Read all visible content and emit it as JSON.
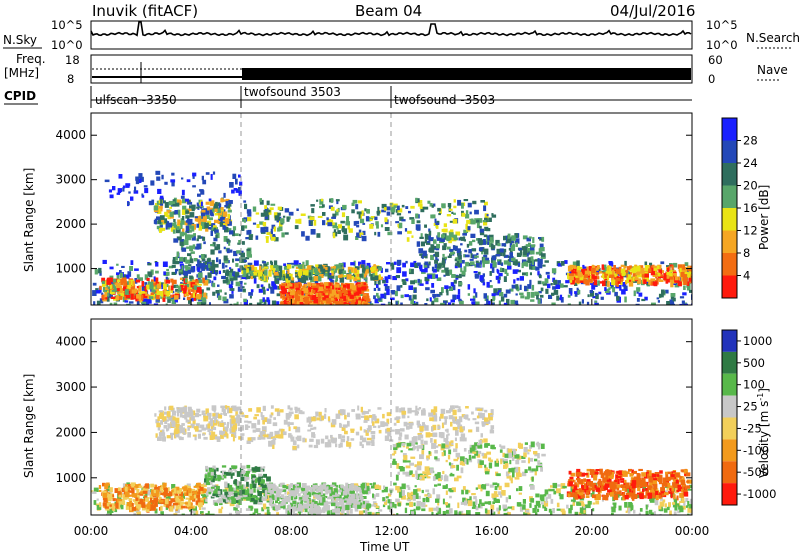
{
  "header": {
    "title": "Inuvik (fitACF)",
    "beam": "Beam 04",
    "date": "04/Jul/2016"
  },
  "colors": {
    "power_scale": [
      "#1a20ff",
      "#2348b8",
      "#2f6e5e",
      "#58a66a",
      "#e9e415",
      "#f5a623",
      "#f36d12",
      "#ff1a0d"
    ],
    "velocity_scale": [
      "#2233bb",
      "#2f7a44",
      "#58b84a",
      "#c8c8c8",
      "#f2cf5a",
      "#f39a1c",
      "#f06a10",
      "#ff1a0d"
    ]
  },
  "chart_data": [
    {
      "type": "line",
      "panel": "noise",
      "ylabel": "N.Sky",
      "ylabel_right": "N.Search",
      "y_ticks": [
        "10^5",
        "10^0"
      ],
      "y_ticks_right": [
        "10^5",
        "10^0"
      ]
    },
    {
      "type": "line",
      "panel": "frequency",
      "ylabel": "Freq.",
      "yunit": "[MHz]",
      "y_ticks": [
        "18",
        "8"
      ],
      "ylabel_right": "Nave",
      "y_ticks_right": [
        "60",
        "0"
      ]
    },
    {
      "type": "table",
      "panel": "cpid",
      "label": "CPID",
      "segments": [
        {
          "name": "ulfscan -3350",
          "start_hour": 0,
          "end_hour": 6
        },
        {
          "name": "twofsound 3503",
          "start_hour": 6,
          "end_hour": 12
        },
        {
          "name": "twofsound -3503",
          "start_hour": 12,
          "end_hour": 24
        }
      ]
    },
    {
      "type": "heatmap",
      "panel": "power",
      "ylabel": "Slant Range [km]",
      "colorbar_label": "Power [dB]",
      "colorbar_ticks": [
        "28",
        "24",
        "20",
        "16",
        "12",
        "8",
        "4"
      ],
      "ylim": [
        180,
        4500
      ],
      "y_ticks": [
        "1000",
        "2000",
        "3000",
        "4000"
      ]
    },
    {
      "type": "heatmap",
      "panel": "velocity",
      "ylabel": "Slant Range [km]",
      "colorbar_label": "Velocity [m s",
      "colorbar_unit_sup": "-1",
      "colorbar_unit_end": "]",
      "colorbar_ticks": [
        "1000",
        "500",
        "100",
        "25",
        "-25",
        "-100",
        "-500",
        "-1000"
      ],
      "ylim": [
        180,
        4500
      ],
      "y_ticks": [
        "1000",
        "2000",
        "3000",
        "4000"
      ]
    }
  ],
  "x_axis": {
    "label": "Time UT",
    "ticks": [
      "00:00",
      "04:00",
      "08:00",
      "12:00",
      "16:00",
      "20:00",
      "00:00"
    ]
  }
}
